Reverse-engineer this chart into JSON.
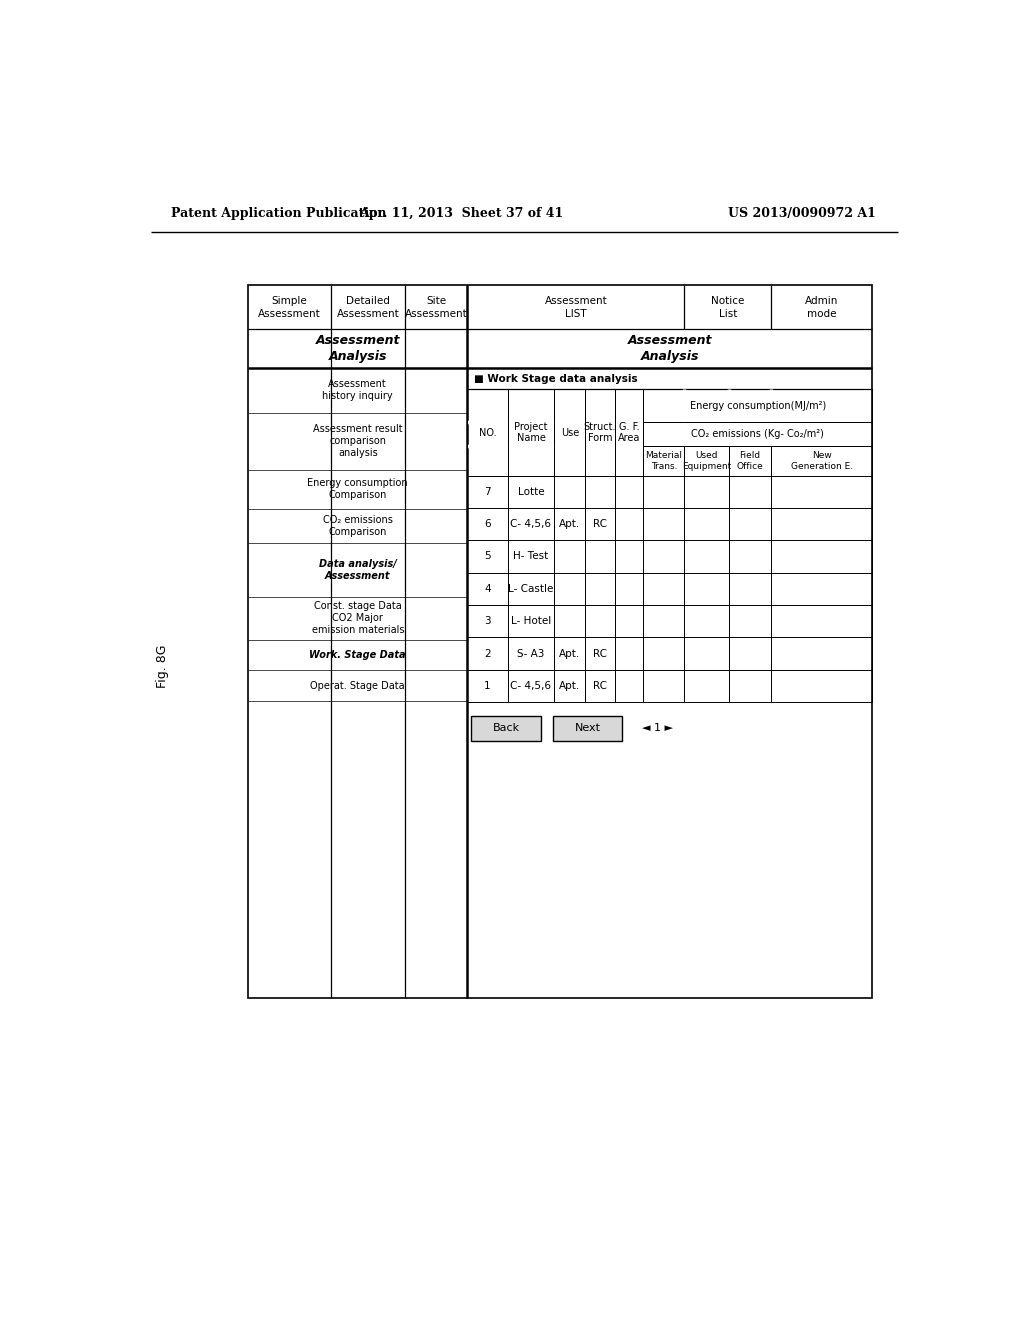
{
  "header_left": "Patent Application Publication",
  "header_mid": "Apr. 11, 2013  Sheet 37 of 41",
  "header_right": "US 2013/0090972 A1",
  "fig_label": "Fig. 8G",
  "bg_color": "#ffffff",
  "work_stage_title": "■ Work Stage data analysis",
  "table_rows": [
    [
      "7",
      "Lotte",
      "",
      "",
      "",
      "",
      "",
      "",
      ""
    ],
    [
      "6",
      "C- 4,5,6",
      "Apt.",
      "RC",
      "",
      "",
      "",
      "",
      ""
    ],
    [
      "5",
      "H- Test",
      "",
      "",
      "",
      "",
      "",
      "",
      ""
    ],
    [
      "4",
      "L- Castle",
      "",
      "",
      "",
      "",
      "",
      "",
      ""
    ],
    [
      "3",
      "L- Hotel",
      "",
      "",
      "",
      "",
      "",
      "",
      ""
    ],
    [
      "2",
      "S- A3",
      "Apt.",
      "RC",
      "",
      "",
      "",
      "",
      ""
    ],
    [
      "1",
      "C- 4,5,6",
      "Apt.",
      "RC",
      "",
      "",
      "",
      "",
      ""
    ]
  ],
  "back_btn": "Back",
  "next_btn": "Next",
  "page_indicator": "◄ 1 ►",
  "nav_items": [
    [
      "Assessment\nhistory inquiry",
      false
    ],
    [
      "Assessment result\ncomparison\nanalysis",
      false
    ],
    [
      "Energy consumption\nComparison",
      false
    ],
    [
      "CO₂ emissions\nComparison",
      false
    ],
    [
      "Data analysis/\nAssessment",
      true
    ],
    [
      "Const. stage Data\nCO2 Major\nemission materials",
      false
    ],
    [
      "Work. Stage Data",
      true
    ],
    [
      "Operat. Stage Data",
      false
    ]
  ]
}
